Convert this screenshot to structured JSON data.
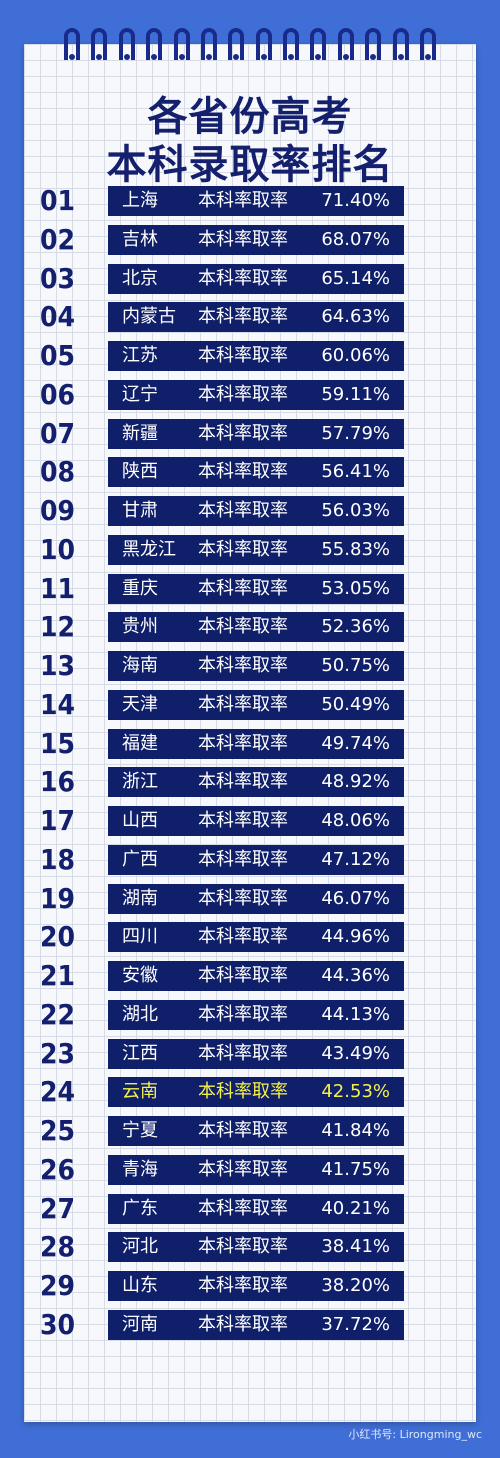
{
  "title_line1": "各省份高考",
  "title_line2": "本科录取率排名",
  "label": "本科率取率",
  "watermark": "小红书号: Lirongming_wc",
  "highlight_rank": "24",
  "rows": [
    {
      "rank": "01",
      "province": "上海",
      "rate": "71.40%"
    },
    {
      "rank": "02",
      "province": "吉林",
      "rate": "68.07%"
    },
    {
      "rank": "03",
      "province": "北京",
      "rate": "65.14%"
    },
    {
      "rank": "04",
      "province": "内蒙古",
      "rate": "64.63%"
    },
    {
      "rank": "05",
      "province": "江苏",
      "rate": "60.06%"
    },
    {
      "rank": "06",
      "province": "辽宁",
      "rate": "59.11%"
    },
    {
      "rank": "07",
      "province": "新疆",
      "rate": "57.79%"
    },
    {
      "rank": "08",
      "province": "陕西",
      "rate": "56.41%"
    },
    {
      "rank": "09",
      "province": "甘肃",
      "rate": "56.03%"
    },
    {
      "rank": "10",
      "province": "黑龙江",
      "rate": "55.83%"
    },
    {
      "rank": "11",
      "province": "重庆",
      "rate": "53.05%"
    },
    {
      "rank": "12",
      "province": "贵州",
      "rate": "52.36%"
    },
    {
      "rank": "13",
      "province": "海南",
      "rate": "50.75%"
    },
    {
      "rank": "14",
      "province": "天津",
      "rate": "50.49%"
    },
    {
      "rank": "15",
      "province": "福建",
      "rate": "49.74%"
    },
    {
      "rank": "16",
      "province": "浙江",
      "rate": "48.92%"
    },
    {
      "rank": "17",
      "province": "山西",
      "rate": "48.06%"
    },
    {
      "rank": "18",
      "province": "广西",
      "rate": "47.12%"
    },
    {
      "rank": "19",
      "province": "湖南",
      "rate": "46.07%"
    },
    {
      "rank": "20",
      "province": "四川",
      "rate": "44.96%"
    },
    {
      "rank": "21",
      "province": "安徽",
      "rate": "44.36%"
    },
    {
      "rank": "22",
      "province": "湖北",
      "rate": "44.13%"
    },
    {
      "rank": "23",
      "province": "江西",
      "rate": "43.49%"
    },
    {
      "rank": "24",
      "province": "云南",
      "rate": "42.53%"
    },
    {
      "rank": "25",
      "province": "宁夏",
      "rate": "41.84%"
    },
    {
      "rank": "26",
      "province": "青海",
      "rate": "41.75%"
    },
    {
      "rank": "27",
      "province": "广东",
      "rate": "40.21%"
    },
    {
      "rank": "28",
      "province": "河北",
      "rate": "38.41%"
    },
    {
      "rank": "29",
      "province": "山东",
      "rate": "38.20%"
    },
    {
      "rank": "30",
      "province": "河南",
      "rate": "37.72%"
    }
  ]
}
